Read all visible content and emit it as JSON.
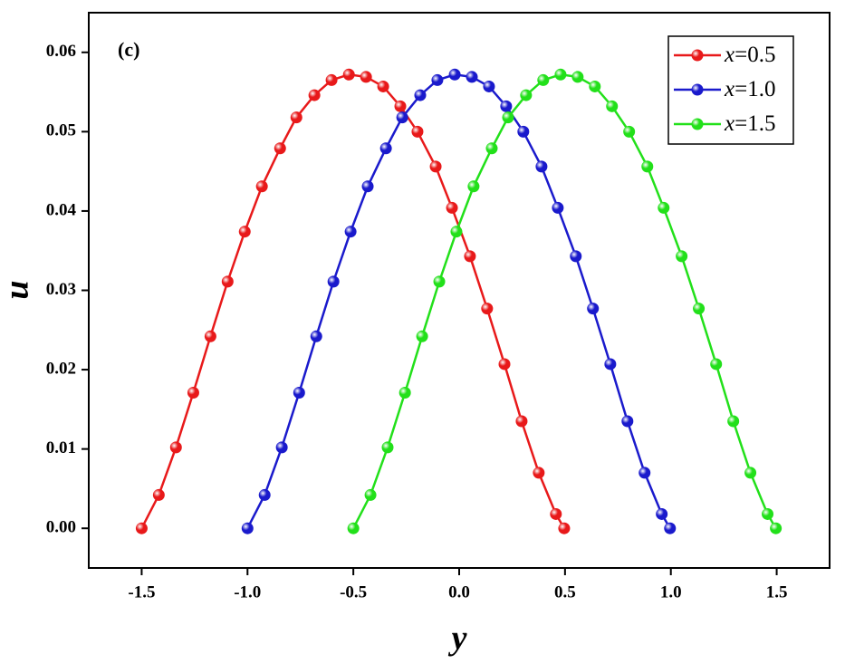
{
  "chart_data": {
    "type": "line",
    "annotation": "(c)",
    "x_label": "y",
    "y_label": "u",
    "xlim": [
      -1.75,
      1.75
    ],
    "ylim": [
      -0.005,
      0.065
    ],
    "xticks": [
      -1.5,
      {
        "value": -1,
        "label": "-1.0"
      },
      -0.5,
      {
        "value": 0,
        "label": "0.0"
      },
      0.5,
      {
        "value": 1,
        "label": "1.0"
      },
      1.5
    ],
    "yticks": [
      {
        "value": 0,
        "label": "0.00"
      },
      0.01,
      0.02,
      0.03,
      0.04,
      0.05,
      0.06
    ],
    "legend": "upper right",
    "series": [
      {
        "name": "x=0.5",
        "color": "#e8191a",
        "x": [
          -1.5,
          -1.419,
          -1.338,
          -1.256,
          -1.175,
          -1.094,
          -1.013,
          -0.932,
          -0.846,
          -0.769,
          -0.684,
          -0.603,
          -0.521,
          -0.44,
          -0.359,
          -0.278,
          -0.197,
          -0.111,
          -0.034,
          0.051,
          0.132,
          0.214,
          0.295,
          0.376,
          0.457,
          0.496
        ],
        "values": [
          0,
          0.0042,
          0.0102,
          0.0171,
          0.0242,
          0.0311,
          0.0374,
          0.0431,
          0.0479,
          0.0518,
          0.0546,
          0.0565,
          0.0572,
          0.0569,
          0.0557,
          0.0532,
          0.05,
          0.0456,
          0.0404,
          0.0343,
          0.0277,
          0.0207,
          0.0135,
          0.007,
          0.0018,
          0
        ]
      },
      {
        "name": "x=1.0",
        "color": "#1a1acc",
        "x": [
          -1.0,
          -0.919,
          -0.838,
          -0.756,
          -0.675,
          -0.594,
          -0.513,
          -0.432,
          -0.346,
          -0.269,
          -0.184,
          -0.103,
          -0.021,
          0.06,
          0.141,
          0.222,
          0.303,
          0.389,
          0.466,
          0.551,
          0.632,
          0.714,
          0.795,
          0.876,
          0.957,
          0.996
        ],
        "values": [
          0,
          0.0042,
          0.0102,
          0.0171,
          0.0242,
          0.0311,
          0.0374,
          0.0431,
          0.0479,
          0.0518,
          0.0546,
          0.0565,
          0.0572,
          0.0569,
          0.0557,
          0.0532,
          0.05,
          0.0456,
          0.0404,
          0.0343,
          0.0277,
          0.0207,
          0.0135,
          0.007,
          0.0018,
          0
        ]
      },
      {
        "name": "x=1.5",
        "color": "#22e01a",
        "x": [
          -0.5,
          -0.419,
          -0.338,
          -0.256,
          -0.175,
          -0.094,
          -0.013,
          0.068,
          0.154,
          0.231,
          0.316,
          0.397,
          0.479,
          0.56,
          0.641,
          0.722,
          0.803,
          0.889,
          0.966,
          1.051,
          1.132,
          1.214,
          1.295,
          1.376,
          1.457,
          1.496
        ],
        "values": [
          0,
          0.0042,
          0.0102,
          0.0171,
          0.0242,
          0.0311,
          0.0374,
          0.0431,
          0.0479,
          0.0518,
          0.0546,
          0.0565,
          0.0572,
          0.0569,
          0.0557,
          0.0532,
          0.05,
          0.0456,
          0.0404,
          0.0343,
          0.0277,
          0.0207,
          0.0135,
          0.007,
          0.0018,
          0
        ]
      }
    ]
  }
}
